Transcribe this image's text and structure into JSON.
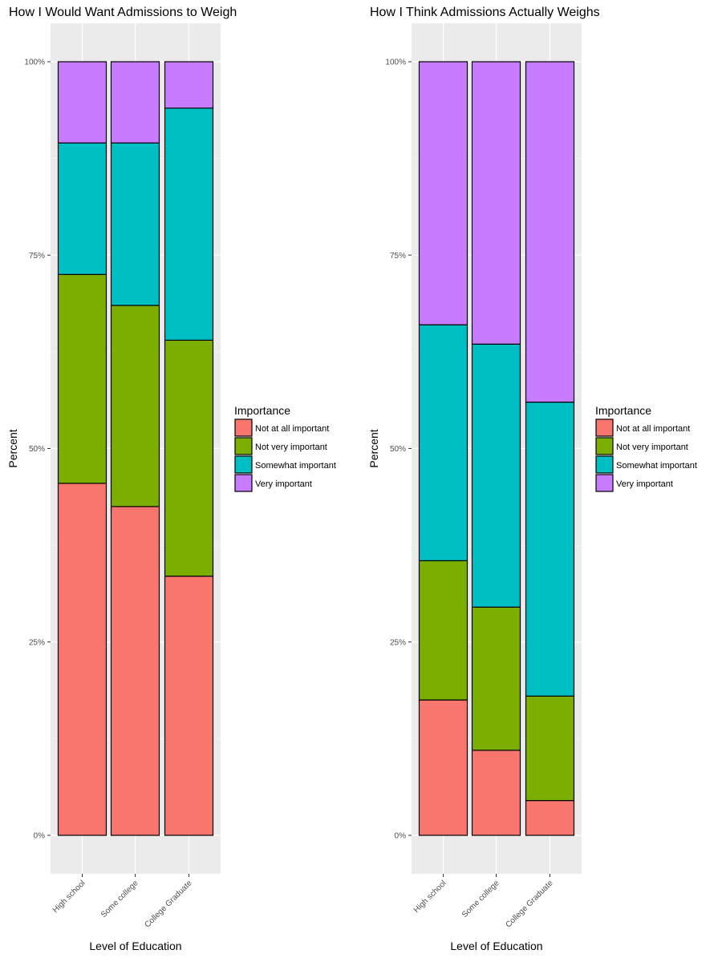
{
  "chart_data": [
    {
      "type": "bar",
      "stacked": true,
      "title": "How I Would Want Admissions to Weigh",
      "xlabel": "Level of Education",
      "ylabel": "Percent",
      "ylim": [
        0,
        100
      ],
      "yticks": [
        0,
        25,
        50,
        75,
        100
      ],
      "ytick_labels": [
        "0%",
        "25%",
        "50%",
        "75%",
        "100%"
      ],
      "categories": [
        "High school",
        "Some college",
        "College Graduate"
      ],
      "legend": {
        "title": "Importance",
        "position": "right"
      },
      "grid": true,
      "series": [
        {
          "name": "Not at all important",
          "color": "#F8766D",
          "values": [
            45.5,
            42.5,
            33.5
          ]
        },
        {
          "name": "Not very important",
          "color": "#7CAE00",
          "values": [
            27.0,
            26.0,
            30.5
          ]
        },
        {
          "name": "Somewhat important",
          "color": "#00BFC4",
          "values": [
            17.0,
            21.0,
            30.0
          ]
        },
        {
          "name": "Very important",
          "color": "#C77CFF",
          "values": [
            10.5,
            10.5,
            6.0
          ]
        }
      ]
    },
    {
      "type": "bar",
      "stacked": true,
      "title": "How I Think Admissions Actually Weighs",
      "xlabel": "Level of Education",
      "ylabel": "Percent",
      "ylim": [
        0,
        100
      ],
      "yticks": [
        0,
        25,
        50,
        75,
        100
      ],
      "ytick_labels": [
        "0%",
        "25%",
        "50%",
        "75%",
        "100%"
      ],
      "categories": [
        "High school",
        "Some college",
        "College Graduate"
      ],
      "legend": {
        "title": "Importance",
        "position": "right"
      },
      "grid": true,
      "series": [
        {
          "name": "Not at all important",
          "color": "#F8766D",
          "values": [
            17.5,
            11.0,
            4.5
          ]
        },
        {
          "name": "Not very important",
          "color": "#7CAE00",
          "values": [
            18.0,
            18.5,
            13.5
          ]
        },
        {
          "name": "Somewhat important",
          "color": "#00BFC4",
          "values": [
            30.5,
            34.0,
            38.0
          ]
        },
        {
          "name": "Very important",
          "color": "#C77CFF",
          "values": [
            34.0,
            36.5,
            44.0
          ]
        }
      ]
    }
  ]
}
